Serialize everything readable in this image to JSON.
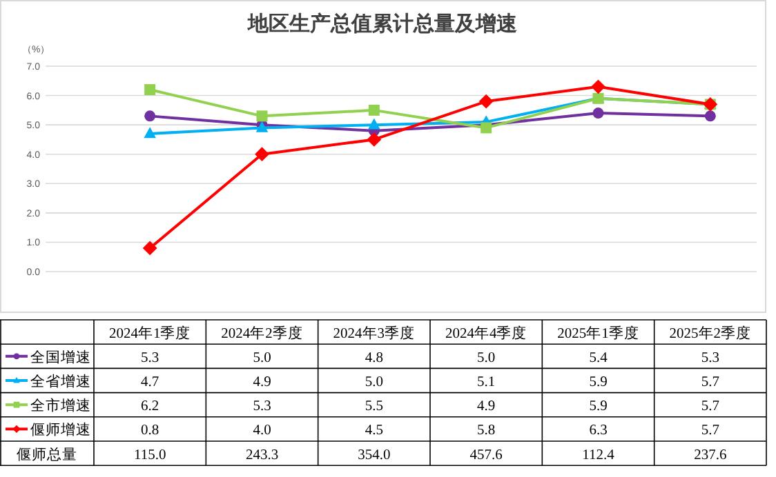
{
  "chart_data": {
    "type": "line",
    "title": "地区生产总值累计总量及增速",
    "ylabel": "（%）",
    "categories": [
      "2024年1季度",
      "2024年2季度",
      "2024年3季度",
      "2024年4季度",
      "2025年1季度",
      "2025年2季度"
    ],
    "series": [
      {
        "name": "全国增速",
        "color": "#7030a0",
        "marker": "circle",
        "values": [
          5.3,
          5.0,
          4.8,
          5.0,
          5.4,
          5.3
        ],
        "value_labels": [
          "5.3",
          "5.0",
          "4.8",
          "5.0",
          "5.4",
          "5.3"
        ]
      },
      {
        "name": "全省增速",
        "color": "#00b0f0",
        "marker": "triangle",
        "values": [
          4.7,
          4.9,
          5.0,
          5.1,
          5.9,
          5.7
        ],
        "value_labels": [
          "4.7",
          "4.9",
          "5.0",
          "5.1",
          "5.9",
          "5.7"
        ]
      },
      {
        "name": "全市增速",
        "color": "#92d050",
        "marker": "square",
        "values": [
          6.2,
          5.3,
          5.5,
          4.9,
          5.9,
          5.7
        ],
        "value_labels": [
          "6.2",
          "5.3",
          "5.5",
          "4.9",
          "5.9",
          "5.7"
        ]
      },
      {
        "name": "偃师增速",
        "color": "#ff0000",
        "marker": "diamond",
        "values": [
          0.8,
          4.0,
          4.5,
          5.8,
          6.3,
          5.7
        ],
        "value_labels": [
          "0.8",
          "4.0",
          "4.5",
          "5.8",
          "6.3",
          "5.7"
        ]
      }
    ],
    "annotations": [
      "偃师总量",
      "115.0",
      "243.3",
      "354.0",
      "457.6",
      "112.4",
      "237.6"
    ],
    "ylim": [
      0,
      7
    ],
    "yticks": [
      {
        "value": 0,
        "label": "0.0"
      },
      {
        "value": 1,
        "label": "1.0"
      },
      {
        "value": 2,
        "label": "2.0"
      },
      {
        "value": 3,
        "label": "3.0"
      },
      {
        "value": 4,
        "label": "4.0"
      },
      {
        "value": 5,
        "label": "5.0"
      },
      {
        "value": 6,
        "label": "6.0"
      },
      {
        "value": 7,
        "label": "7.0"
      }
    ],
    "grid": "y",
    "legend": "bottom",
    "line_style": "solid"
  }
}
